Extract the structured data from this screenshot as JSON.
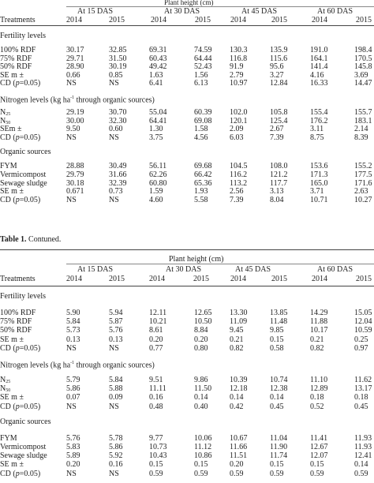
{
  "table1": {
    "plant_height_label": "Plant height (cm)",
    "treatments_label": "Treatments",
    "das": [
      "At 15 DAS",
      "At 30 DAS",
      "At 45 DAS",
      "At 60 DAS"
    ],
    "years": [
      "2014",
      "2015",
      "2014",
      "2015",
      "2014",
      "2015",
      "2014",
      "2015"
    ],
    "sections": [
      {
        "title": "Fertility levels",
        "rows": [
          {
            "label": "100% RDF",
            "v": [
              "30.17",
              "32.85",
              "69.31",
              "74.59",
              "130.3",
              "135.9",
              "191.0",
              "198.4"
            ]
          },
          {
            "label": "75% RDF",
            "v": [
              "29.71",
              "31.50",
              "60.43",
              "64.44",
              "116.8",
              "115.6",
              "164.1",
              "170.5"
            ]
          },
          {
            "label": "50% RDF",
            "v": [
              "28.90",
              "30.19",
              "49.42",
              "52.43",
              "91.9",
              "95.6",
              "141.4",
              "145.8"
            ]
          },
          {
            "label": "SE m ±",
            "v": [
              "0.66",
              "0.85",
              "1.63",
              "1.56",
              "2.79",
              "3.27",
              "4.16",
              "3.69"
            ]
          },
          {
            "label": "CD (p=0.05)",
            "v": [
              "NS",
              "NS",
              "6.41",
              "6.13",
              "10.97",
              "12.84",
              "16.33",
              "14.47"
            ]
          }
        ]
      },
      {
        "title": "Nitrogen levels (kg ha-1 through organic sources)",
        "rows": [
          {
            "label": "N25",
            "v": [
              "29.19",
              "30.70",
              "55.04",
              "60.39",
              "102.0",
              "105.8",
              "155.4",
              "155.7"
            ]
          },
          {
            "label": "N50",
            "v": [
              "30.00",
              "32.30",
              "64.41",
              "69.08",
              "120.1",
              "125.4",
              "176.2",
              "183.1"
            ]
          },
          {
            "label": "SEm ±",
            "v": [
              "9.50",
              "0.60",
              "1.30",
              "1.58",
              "2.09",
              "2.67",
              "3.11",
              "2.14"
            ]
          },
          {
            "label": "CD (p=0.05)",
            "v": [
              "NS",
              "NS",
              "3.75",
              "4.56",
              "6.03",
              "7.39",
              "8.75",
              "8.39"
            ]
          }
        ]
      },
      {
        "title": "Organic sources",
        "rows": [
          {
            "label": "FYM",
            "v": [
              "28.88",
              "30.49",
              "56.11",
              "69.68",
              "104.5",
              "108.0",
              "153.6",
              "155.2"
            ]
          },
          {
            "label": "Vermicompost",
            "v": [
              "29.79",
              "31.66",
              "62.26",
              "66.42",
              "116.2",
              "121.2",
              "171.3",
              "177.5"
            ]
          },
          {
            "label": "Sewage sludge",
            "v": [
              "30.18",
              "32.39",
              "60.80",
              "65.36",
              "113.2",
              "117.7",
              "165.0",
              "171.6"
            ]
          },
          {
            "label": "SE m ±",
            "v": [
              "0.671",
              "0.73",
              "1.59",
              "1.93",
              "2.56",
              "3.13",
              "3.71",
              "2.63"
            ]
          },
          {
            "label": "CD (p=0.05)",
            "v": [
              "NS",
              "NS",
              "4.60",
              "5.58",
              "7.39",
              "8.04",
              "10.71",
              "10.27"
            ]
          }
        ]
      }
    ]
  },
  "table2": {
    "caption_bold": "Table 1.",
    "caption_rest": " Contuned.",
    "plant_height_label": "Plant height (cm)",
    "treatments_label": "Treatments",
    "das": [
      "At 15 DAS",
      "At 30 DAS",
      "At 45 DAS",
      "At 60 DAS"
    ],
    "years": [
      "2014",
      "2015",
      "2014",
      "2015",
      "2014",
      "2015",
      "2014",
      "2015"
    ],
    "sections": [
      {
        "title": "Fertility levels",
        "rows": [
          {
            "label": "100% RDF",
            "v": [
              "5.90",
              "5.94",
              "12.11",
              "12.65",
              "13.30",
              "13.85",
              "14.29",
              "15.05"
            ]
          },
          {
            "label": "75% RDF",
            "v": [
              "5.84",
              "5.87",
              "10.21",
              "10.50",
              "11.09",
              "11.48",
              "11.88",
              "12.04"
            ]
          },
          {
            "label": "50% RDF",
            "v": [
              "5.73",
              "5.76",
              "8.61",
              "8.84",
              "9.45",
              "9.85",
              "10.17",
              "10.59"
            ]
          },
          {
            "label": "SE m ±",
            "v": [
              "0.13",
              "0.13",
              "0.20",
              "0.20",
              "0.21",
              "0.15",
              "0.21",
              "0.25"
            ]
          },
          {
            "label": "CD (p=0.05)",
            "v": [
              "NS",
              "NS",
              "0.77",
              "0.80",
              "0.82",
              "0.58",
              "0.82",
              "0.97"
            ]
          }
        ]
      },
      {
        "title": "Nitrogen levels (kg ha-1 through organic sources)",
        "rows": [
          {
            "label": "N25",
            "v": [
              "5.79",
              "5.84",
              "9.51",
              "9.86",
              "10.39",
              "10.74",
              "11.10",
              "11.62"
            ]
          },
          {
            "label": "N50",
            "v": [
              "5.86",
              "5.88",
              "11.11",
              "11.50",
              "12.18",
              "12.38",
              "12.89",
              "13.17"
            ]
          },
          {
            "label": "SE m ±",
            "v": [
              "0.07",
              "0.09",
              "0.16",
              "0.14",
              "0.14",
              "0.14",
              "0.18",
              "0.18"
            ]
          },
          {
            "label": "CD (p=0.05)",
            "v": [
              "NS",
              "NS",
              "0.48",
              "0.40",
              "0.42",
              "0.45",
              "0.52",
              "0.45"
            ]
          }
        ]
      },
      {
        "title": "Organic sources",
        "rows": [
          {
            "label": "FYM",
            "v": [
              "5.76",
              "5.78",
              "9.77",
              "10.06",
              "10.67",
              "11.04",
              "11.41",
              "11.93"
            ]
          },
          {
            "label": "Vermicompost",
            "v": [
              "5.83",
              "5.86",
              "10.73",
              "11.12",
              "11.66",
              "11.90",
              "12.67",
              "11.93"
            ]
          },
          {
            "label": "Sewage sludge",
            "v": [
              "5.89",
              "5.92",
              "10.43",
              "10.86",
              "11.51",
              "11.74",
              "12.07",
              "12.41"
            ]
          },
          {
            "label": "SE m ±",
            "v": [
              "0.20",
              "0.16",
              "0.15",
              "0.15",
              "0.20",
              "0.15",
              "0.15",
              "0.14"
            ]
          },
          {
            "label": "CD (p=0.05)",
            "v": [
              "NS",
              "NS",
              "0.59",
              "0.59",
              "0.59",
              "0.59",
              "0.59",
              "0.59"
            ]
          }
        ]
      }
    ]
  }
}
